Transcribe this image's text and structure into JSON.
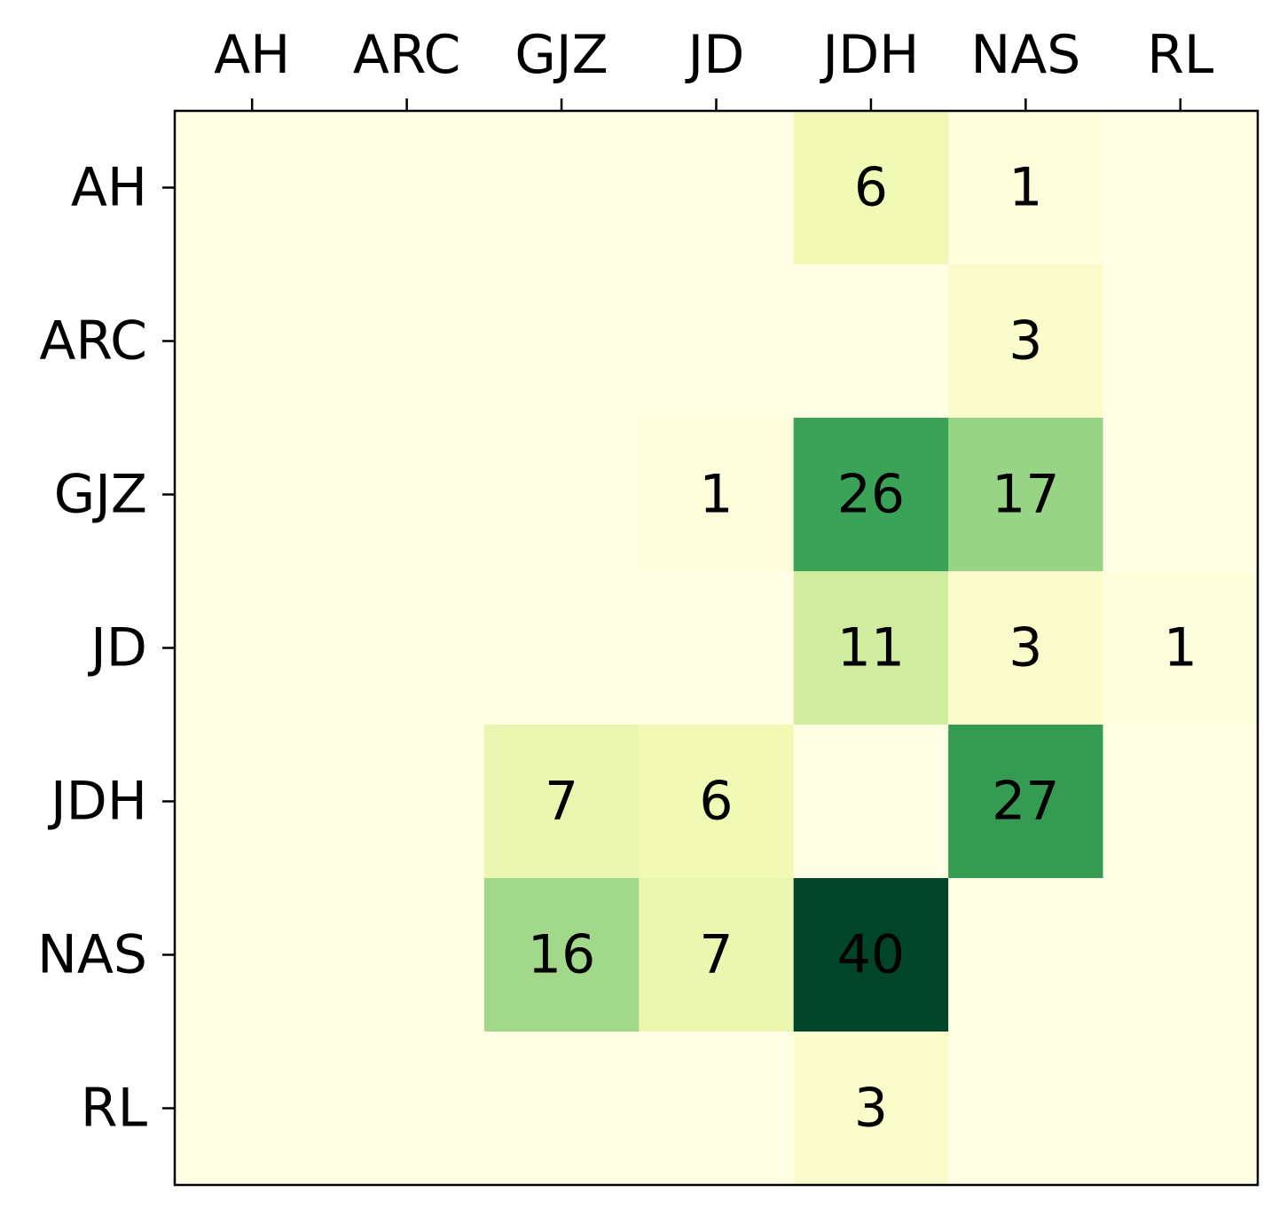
{
  "chart_data": {
    "type": "heatmap",
    "title": "",
    "xlabel": "",
    "ylabel": "",
    "x_categories": [
      "AH",
      "ARC",
      "GJZ",
      "JD",
      "JDH",
      "NAS",
      "RL"
    ],
    "y_categories": [
      "AH",
      "ARC",
      "GJZ",
      "JD",
      "JDH",
      "NAS",
      "RL"
    ],
    "x_axis_position": "top",
    "colormap": "YlGn",
    "value_range": [
      0,
      40
    ],
    "grid": false,
    "values": [
      [
        0,
        0,
        0,
        0,
        6,
        1,
        0
      ],
      [
        0,
        0,
        0,
        0,
        0,
        3,
        0
      ],
      [
        0,
        0,
        0,
        1,
        26,
        17,
        0
      ],
      [
        0,
        0,
        0,
        0,
        11,
        3,
        1
      ],
      [
        0,
        0,
        7,
        6,
        0,
        27,
        0
      ],
      [
        0,
        0,
        16,
        7,
        40,
        0,
        0
      ],
      [
        0,
        0,
        0,
        0,
        3,
        0,
        0
      ]
    ],
    "labels": [
      [
        "",
        "",
        "",
        "",
        "6",
        "1",
        ""
      ],
      [
        "",
        "",
        "",
        "",
        "",
        "3",
        ""
      ],
      [
        "",
        "",
        "",
        "1",
        "26",
        "17",
        ""
      ],
      [
        "",
        "",
        "",
        "",
        "11",
        "3",
        "1"
      ],
      [
        "",
        "",
        "7",
        "6",
        "",
        "27",
        ""
      ],
      [
        "",
        "",
        "16",
        "7",
        "40",
        "",
        ""
      ],
      [
        "",
        "",
        "",
        "",
        "3",
        "",
        ""
      ]
    ]
  }
}
